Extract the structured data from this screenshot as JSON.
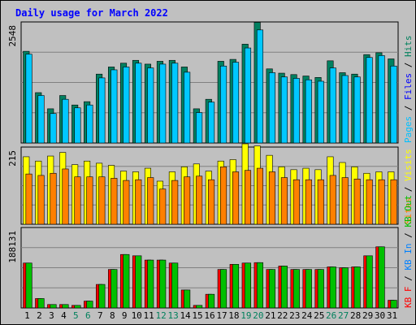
{
  "chart_data": {
    "type": "bar",
    "title": "Daily usage for March 2022",
    "categories": [
      "1",
      "2",
      "3",
      "4",
      "5",
      "6",
      "7",
      "8",
      "9",
      "10",
      "11",
      "12",
      "13",
      "14",
      "15",
      "16",
      "17",
      "18",
      "19",
      "20",
      "21",
      "22",
      "23",
      "24",
      "25",
      "26",
      "27",
      "28",
      "29",
      "30",
      "31"
    ],
    "weekend_days": [
      "5",
      "6",
      "12",
      "13",
      "19",
      "20",
      "26",
      "27"
    ],
    "colors": {
      "background": "#c0c0c0",
      "hits": "#00805c",
      "files": "#0000ff",
      "pages": "#00c0ff",
      "visits": "#ffff00",
      "sites": "#ff8000",
      "kb_in": "#0080ff",
      "kb_out": "#00c000",
      "kb_f": "#ff0000",
      "weekend_label": "#00805c",
      "weekday_label": "#000000"
    },
    "panels": [
      {
        "id": "hits-files-pages",
        "ymax_label": "2548",
        "ylim": [
          0,
          2548
        ],
        "legend": [
          {
            "text": "Pages",
            "color": "#00c0ff"
          },
          {
            "text": "Files",
            "color": "#0000ff"
          },
          {
            "text": "Hits",
            "color": "#00805c"
          }
        ],
        "separator": " / ",
        "series": [
          {
            "name": "Hits",
            "color": "#008060",
            "values": [
              1930,
              1060,
              720,
              1000,
              800,
              870,
              1450,
              1600,
              1680,
              1740,
              1660,
              1720,
              1740,
              1600,
              720,
              920,
              1720,
              1760,
              2080,
              2540,
              1560,
              1470,
              1440,
              1410,
              1380,
              1730,
              1480,
              1450,
              1860,
              1900,
              1770
            ]
          },
          {
            "name": "Pages",
            "color": "#00c8ff",
            "values": [
              1870,
              1000,
              620,
              920,
              740,
              800,
              1370,
              1540,
              1600,
              1680,
              1580,
              1660,
              1680,
              1490,
              640,
              860,
              1620,
              1700,
              2000,
              2380,
              1480,
              1390,
              1360,
              1330,
              1300,
              1580,
              1420,
              1390,
              1800,
              1840,
              1620
            ]
          }
        ]
      },
      {
        "id": "visits-sites",
        "ymax_label": "215",
        "ylim": [
          0,
          215
        ],
        "legend": [
          {
            "text": "Sites",
            "color": "#ff8000"
          },
          {
            "text": "Visits",
            "color": "#ffff00"
          }
        ],
        "separator": " / ",
        "series": [
          {
            "name": "Visits",
            "color": "#ffff00",
            "values": [
              188,
              176,
              190,
              200,
              166,
              176,
              170,
              164,
              148,
              146,
              156,
              120,
              146,
              160,
              168,
              148,
              176,
              180,
              224,
              218,
              192,
              160,
              152,
              156,
              152,
              188,
              172,
              160,
              142,
              146,
              146
            ]
          },
          {
            "name": "Sites",
            "color": "#ff8000",
            "values": [
              140,
              136,
              142,
              154,
              132,
              132,
              132,
              128,
              122,
              124,
              130,
              98,
              122,
              132,
              134,
              124,
              160,
              146,
              150,
              156,
              146,
              130,
              124,
              124,
              124,
              136,
              130,
              126,
              124,
              124,
              124
            ]
          }
        ]
      },
      {
        "id": "kbytes",
        "ymax_label": "188131",
        "ylim": [
          0,
          188131
        ],
        "legend": [
          {
            "text": "KB F",
            "color": "#ff0000"
          },
          {
            "text": "KB In",
            "color": "#0080ff"
          },
          {
            "text": "KB Out",
            "color": "#00c000"
          }
        ],
        "separator": " / ",
        "series": [
          {
            "name": "KB F",
            "color": "#ff0000",
            "values": [
              105000,
              22000,
              8000,
              8000,
              6000,
              16000,
              55000,
              90000,
              125000,
              122000,
              112000,
              112000,
              105000,
              42000,
              6000,
              32000,
              90000,
              102000,
              105000,
              106000,
              90000,
              98000,
              90000,
              90000,
              90000,
              96000,
              94000,
              96000,
              122000,
              143000,
              18000
            ]
          },
          {
            "name": "KB Out",
            "color": "#00c000",
            "values": [
              105000,
              22000,
              8000,
              8000,
              6000,
              16000,
              55000,
              90000,
              125000,
              122000,
              112000,
              112000,
              105000,
              42000,
              6000,
              32000,
              90000,
              102000,
              105000,
              106000,
              90000,
              98000,
              90000,
              90000,
              90000,
              96000,
              94000,
              96000,
              122000,
              143000,
              18000
            ]
          }
        ]
      }
    ]
  }
}
